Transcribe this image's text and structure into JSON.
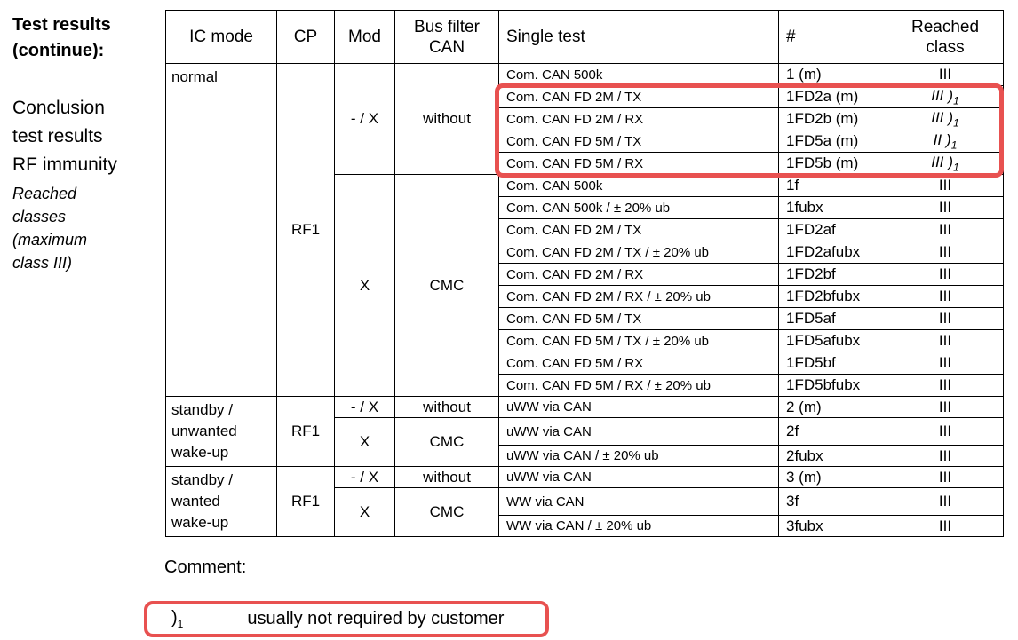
{
  "sidebar": {
    "title": "Test results\n(continue):",
    "body": "Conclusion\ntest results\nRF immunity",
    "note": "Reached\nclasses\n(maximum\nclass III)"
  },
  "table": {
    "headers": [
      "IC mode",
      "CP",
      "Mod",
      "Bus filter\nCAN",
      "Single test",
      "#",
      "Reached\nclass"
    ],
    "note": {
      "paren": ")",
      "sub": "1"
    },
    "rows": [
      {
        "ic": {
          "text": "normal",
          "span": 15
        },
        "cp": {
          "text": "RF1",
          "span": 15
        },
        "mod": {
          "text": "- / X",
          "span": 5
        },
        "bus": {
          "text": "without",
          "span": 5
        },
        "test": "Com. CAN 500k",
        "num": "1 (m)",
        "cls": "III"
      },
      {
        "test": "Com. CAN FD 2M / TX",
        "num": "1FD2a (m)",
        "cls": "III",
        "note": true
      },
      {
        "test": "Com. CAN FD 2M / RX",
        "num": "1FD2b (m)",
        "cls": "III",
        "note": true
      },
      {
        "test": "Com. CAN FD 5M / TX",
        "num": "1FD5a (m)",
        "cls": "II",
        "note": true
      },
      {
        "test": "Com. CAN FD 5M / RX",
        "num": "1FD5b (m)",
        "cls": "III",
        "note": true
      },
      {
        "mod": {
          "text": "X",
          "span": 10
        },
        "bus": {
          "text": "CMC",
          "span": 10
        },
        "test": "Com. CAN 500k",
        "num": "1f",
        "cls": "III"
      },
      {
        "test": "Com. CAN 500k / ± 20% ub",
        "num": "1fubx",
        "cls": "III"
      },
      {
        "test": "Com. CAN FD 2M / TX",
        "num": "1FD2af",
        "cls": "III"
      },
      {
        "test": "Com. CAN FD 2M / TX / ± 20% ub",
        "num": "1FD2afubx",
        "cls": "III"
      },
      {
        "test": "Com. CAN FD 2M / RX",
        "num": "1FD2bf",
        "cls": "III"
      },
      {
        "test": "Com. CAN FD 2M / RX / ± 20% ub",
        "num": "1FD2bfubx",
        "cls": "III"
      },
      {
        "test": "Com. CAN FD 5M / TX",
        "num": "1FD5af",
        "cls": "III"
      },
      {
        "test": "Com. CAN FD 5M / TX / ± 20% ub",
        "num": "1FD5afubx",
        "cls": "III"
      },
      {
        "test": "Com. CAN FD 5M / RX",
        "num": "1FD5bf",
        "cls": "III"
      },
      {
        "test": "Com. CAN FD 5M / RX / ± 20% ub",
        "num": "1FD5bfubx",
        "cls": "III"
      },
      {
        "ic": {
          "text": "standby /\nunwanted\nwake-up",
          "span": 3
        },
        "cp": {
          "text": "RF1",
          "span": 3
        },
        "mod": {
          "text": "- / X"
        },
        "bus": {
          "text": "without"
        },
        "test": "uWW via CAN",
        "num": "2 (m)",
        "cls": "III"
      },
      {
        "mod": {
          "text": "X",
          "span": 2
        },
        "bus": {
          "text": "CMC",
          "span": 2
        },
        "test": "uWW via CAN",
        "num": "2f",
        "cls": "III"
      },
      {
        "test": "uWW via CAN / ± 20% ub",
        "num": "2fubx",
        "cls": "III"
      },
      {
        "ic": {
          "text": "standby /\nwanted\nwake-up",
          "span": 3
        },
        "cp": {
          "text": "RF1",
          "span": 3
        },
        "mod": {
          "text": "- / X"
        },
        "bus": {
          "text": "without"
        },
        "test": "uWW via CAN",
        "num": "3 (m)",
        "cls": "III"
      },
      {
        "mod": {
          "text": "X",
          "span": 2
        },
        "bus": {
          "text": "CMC",
          "span": 2
        },
        "test": "WW via CAN",
        "num": "3f",
        "cls": "III"
      },
      {
        "test": "WW via CAN / ± 20% ub",
        "num": "3fubx",
        "cls": "III"
      }
    ]
  },
  "comment": {
    "label": "Comment:",
    "marker": {
      "paren": ")",
      "sub": "1"
    },
    "text": "usually not required by customer"
  },
  "colors": {
    "highlight_red": "#e85150"
  }
}
